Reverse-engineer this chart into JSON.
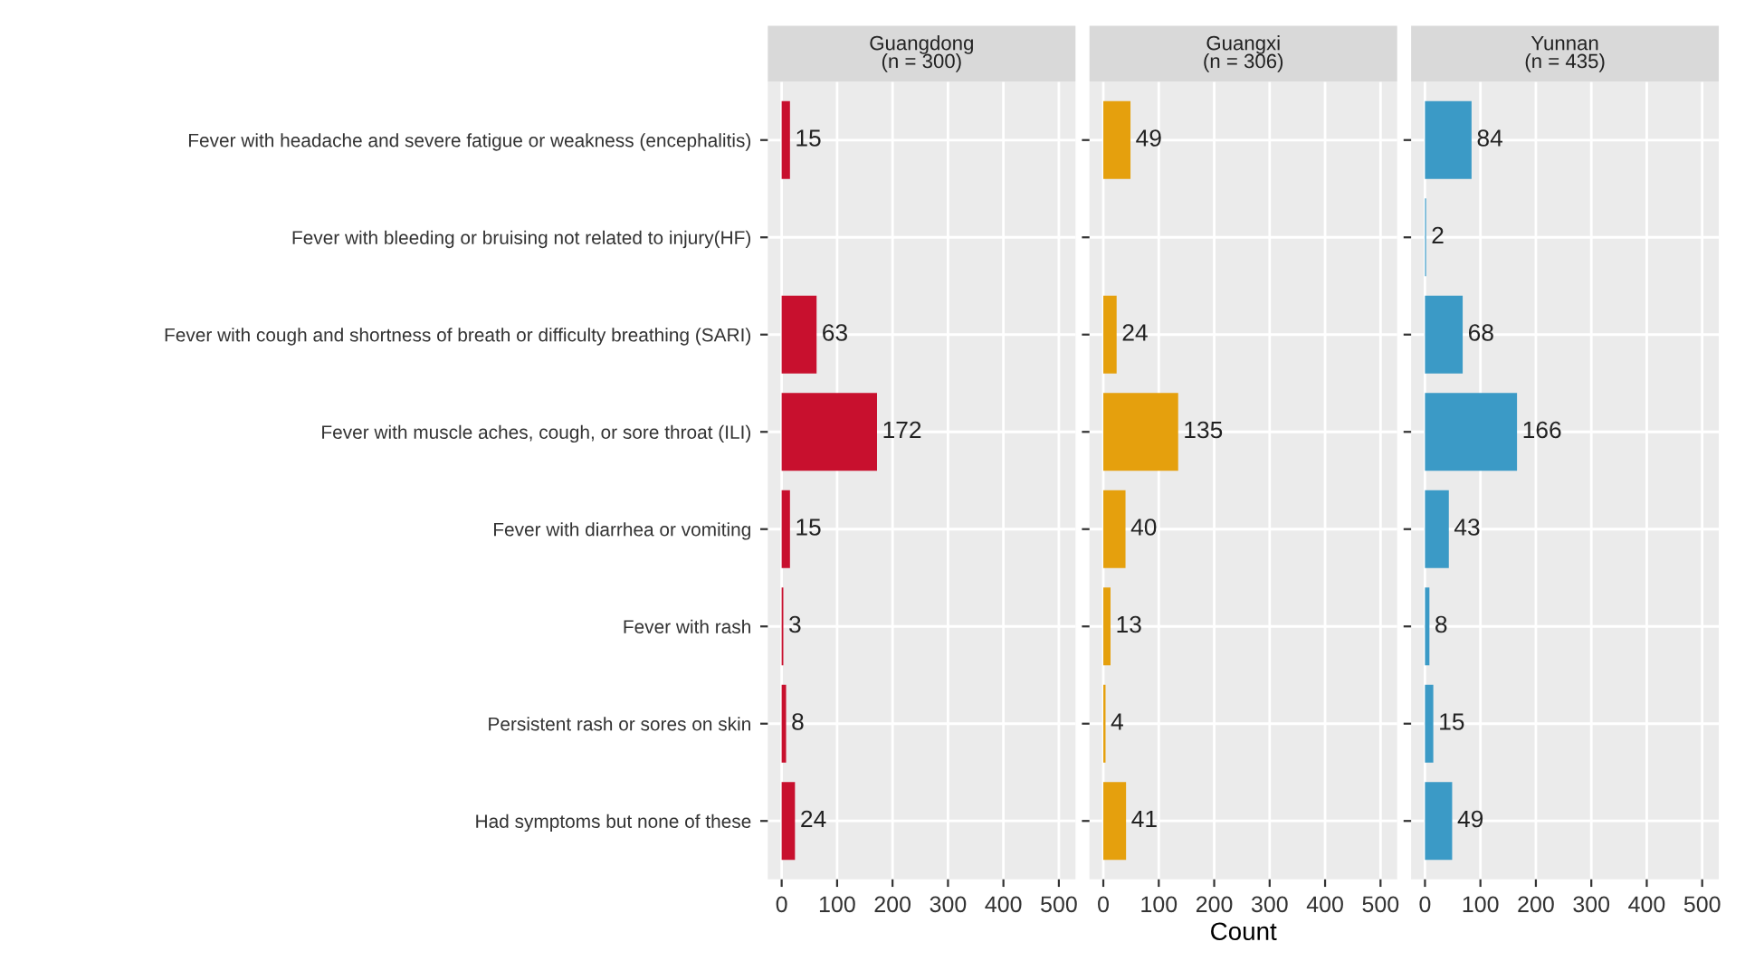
{
  "chart_data": [
    {
      "type": "bar",
      "orientation": "horizontal",
      "title": "Guangdong\n(n = 300)",
      "categories": [
        "Fever with headache and severe fatigue or weakness (encephalitis)",
        "Fever with bleeding or bruising not related to injury(HF)",
        "Fever with cough and shortness of breath or difficulty breathing (SARI)",
        "Fever with muscle aches, cough, or sore throat (ILI)",
        "Fever with diarrhea or vomiting",
        "Fever with rash",
        "Persistent rash or sores on skin",
        "Had symptoms but none of these"
      ],
      "values": [
        15,
        null,
        63,
        172,
        15,
        3,
        8,
        24
      ],
      "color": "#c8102e",
      "xlim": [
        -25,
        530
      ],
      "xticks": [
        0,
        100,
        200,
        300,
        400,
        500
      ],
      "grid": true,
      "data_labels": true
    },
    {
      "type": "bar",
      "orientation": "horizontal",
      "title": "Guangxi\n(n = 306)",
      "xlabel": "Count",
      "categories": [
        null,
        null,
        null,
        null,
        null,
        null,
        null,
        null
      ],
      "values": [
        49,
        null,
        24,
        135,
        40,
        13,
        4,
        41
      ],
      "color": "#e5a00d",
      "xlim": [
        -25,
        530
      ],
      "xticks": [
        0,
        100,
        200,
        300,
        400,
        500
      ],
      "grid": true,
      "data_labels": true,
      "tick_labels": "x"
    },
    {
      "type": "bar",
      "orientation": "horizontal",
      "title": "Yunnan\n(n = 435)",
      "categories": [
        null,
        null,
        null,
        null,
        null,
        null,
        null,
        null
      ],
      "values": [
        84,
        2,
        68,
        166,
        43,
        8,
        15,
        49
      ],
      "color": "#3b9ac6",
      "xlim": [
        -25,
        530
      ],
      "xticks": [
        0,
        100,
        200,
        300,
        400,
        500
      ],
      "grid": true,
      "data_labels": true,
      "tick_labels": "x"
    }
  ]
}
